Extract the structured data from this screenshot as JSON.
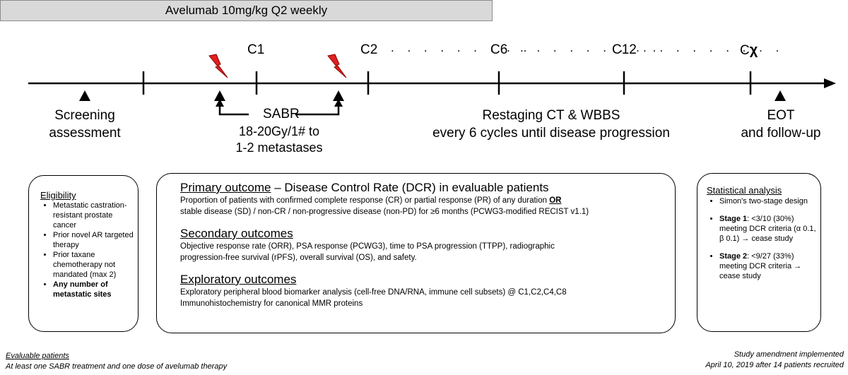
{
  "banner": "Avelumab 10mg/kg Q2 weekly",
  "cycles": {
    "c1": "C1",
    "c2": "C2",
    "c6": "C6",
    "c12": "C12",
    "cx_c": "C",
    "cx_chi": "χ"
  },
  "dots": ". . . . . . . . .",
  "timeline": {
    "screening": [
      "Screening",
      "assessment"
    ],
    "sabr": "SABR",
    "sabr_dose": [
      "18-20Gy/1# to",
      "1-2 metastases"
    ],
    "restaging": [
      "Restaging CT & WBBS",
      "every 6 cycles until disease progression"
    ],
    "eot": [
      "EOT",
      "and follow-up"
    ]
  },
  "eligibility": {
    "title": "Eligibility",
    "items": [
      "Metastatic castration-resistant prostate cancer",
      "Prior novel AR targeted therapy",
      "Prior taxane chemotherapy not mandated (max 2)"
    ],
    "bold_item": "Any number of metastatic sites"
  },
  "outcomes": {
    "primary_title": "Primary outcome",
    "primary_rest": " – Disease Control Rate (DCR) in evaluable patients",
    "primary_text1a": "Proportion of patients with confirmed complete response (CR) or partial response (PR) of any duration ",
    "primary_or": "OR",
    "primary_text2": "stable disease (SD) / non-CR / non-progressive disease (non-PD) for ≥6 months (PCWG3-modified RECIST v1.1)",
    "secondary_title": "Secondary outcomes",
    "secondary_text1": "Objective response rate (ORR), PSA response (PCWG3), time to PSA progression (TTPP), radiographic",
    "secondary_text2": "progression-free survival (rPFS), overall survival (OS), and safety.",
    "exploratory_title": "Exploratory outcomes",
    "exploratory_text1": "Exploratory peripheral blood biomarker analysis (cell-free DNA/RNA, immune cell subsets) @ C1,C2,C4,C8",
    "exploratory_text2": "Immunohistochemistry for canonical MMR proteins"
  },
  "stats": {
    "title": "Statistical analysis",
    "item1": "Simon's two-stage design",
    "stage1_label": "Stage 1",
    "stage1_text": ": <3/10 (30%) meeting DCR criteria (α 0.1, β 0.1) → cease study",
    "stage2_label": "Stage 2",
    "stage2_text": ": <9/27 (33%) meeting DCR criteria → cease study"
  },
  "footer": {
    "left_title": "Evaluable patients",
    "left_text": "At least one SABR treatment and one dose of avelumab therapy",
    "right1": "Study amendment implemented",
    "right2": "April 10, 2019 after 14 patients recruited"
  },
  "colors": {
    "lightning": "#e02020",
    "banner": "#d9d9d9"
  }
}
